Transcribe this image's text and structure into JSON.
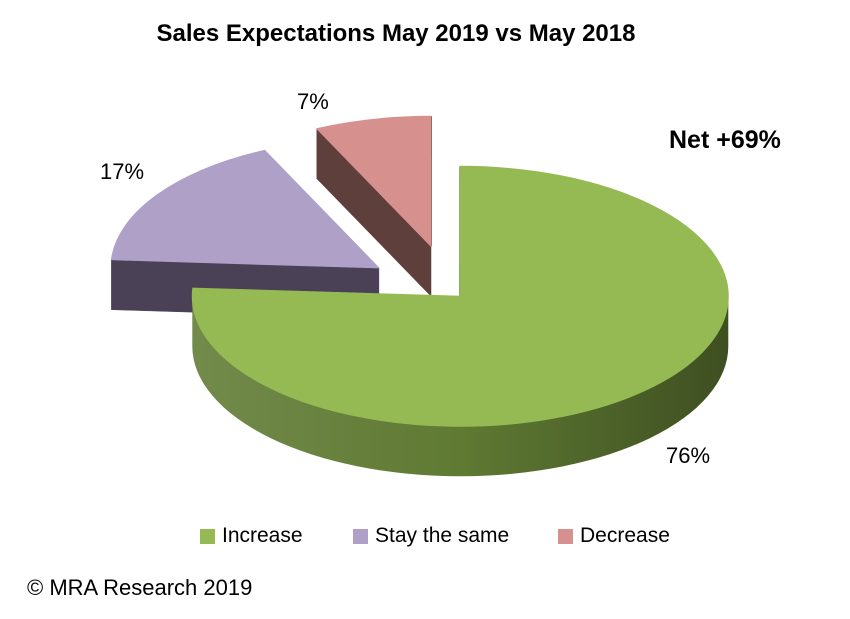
{
  "chart_data": {
    "type": "pie",
    "style": "3d-exploded",
    "title": "Sales Expectations May 2019 vs May 2018",
    "annotation": "Net +69%",
    "legend_position": "bottom",
    "categories": [
      "Increase",
      "Stay the same",
      "Decrease"
    ],
    "values": [
      76,
      17,
      7
    ],
    "series": [
      {
        "name": "Increase",
        "value": 76,
        "label": "76%",
        "color_top": "#96BA53",
        "color_side": "#5F7A33"
      },
      {
        "name": "Stay the same",
        "value": 17,
        "label": "17%",
        "color_top": "#AEA0C7",
        "color_side": "#4A4157"
      },
      {
        "name": "Decrease",
        "value": 7,
        "label": "7%",
        "color_top": "#D6918F",
        "color_side": "#5E3F3B"
      }
    ]
  },
  "footer": {
    "copyright": "© MRA Research 2019"
  }
}
